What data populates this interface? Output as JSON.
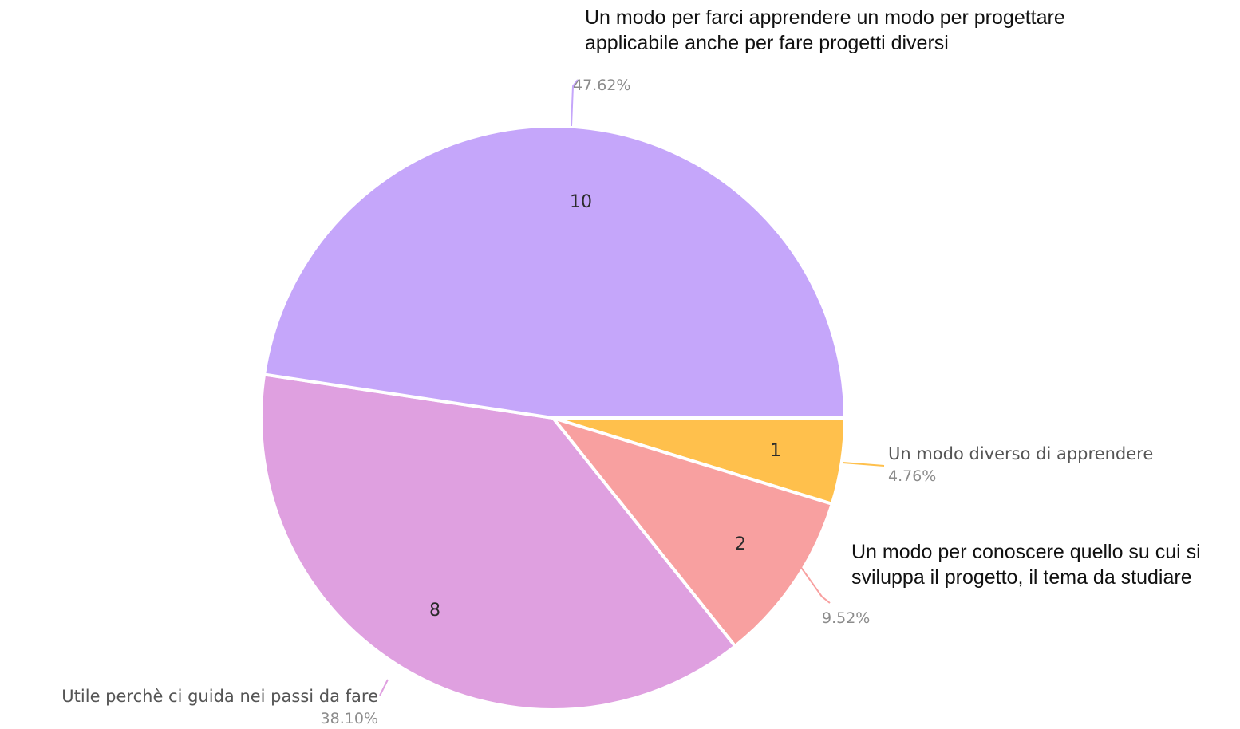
{
  "chart_data": {
    "type": "pie",
    "title": "",
    "slices": [
      {
        "label": "Un modo diverso di apprendere",
        "value": 1,
        "percent": "4.76%",
        "color": "#FFC04C"
      },
      {
        "label": "Un modo per conoscere quello su cui si sviluppa il progetto, il tema da studiare",
        "value": 2,
        "percent": "9.52%",
        "color": "#F8A0A0"
      },
      {
        "label": "Utile perchè ci guida nei passi da fare",
        "value": 8,
        "percent": "38.10%",
        "color": "#DFA0E0"
      },
      {
        "label": "Un modo per farci apprendere un modo per progettare applicabile anche per fare progetti diversi",
        "value": 10,
        "percent": "47.62%",
        "color": "#C5A6FA"
      }
    ]
  },
  "annotations": {
    "top_line1": "Un modo per farci apprendere un modo per progettare",
    "top_line2": "applicabile anche per fare progetti diversi",
    "right_line1": "Un modo per conoscere quello su cui si",
    "right_line2": "sviluppa il progetto, il tema da studiare"
  }
}
